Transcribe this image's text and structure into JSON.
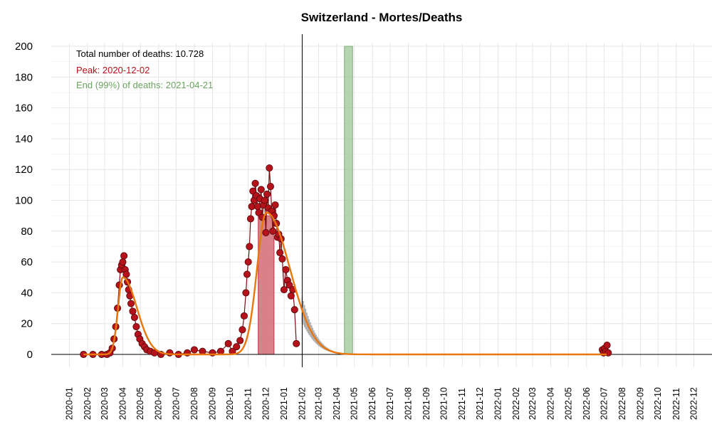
{
  "chart_data": {
    "type": "scatter",
    "title": "Switzerland - Mortes/Deaths",
    "xlabel": "",
    "ylabel": "",
    "ylim": [
      0,
      200
    ],
    "xlim": [
      "2019-12-01",
      "2023-01-01"
    ],
    "yticks": [
      0,
      20,
      40,
      60,
      80,
      100,
      120,
      140,
      160,
      180,
      200
    ],
    "xticks": [
      "2020-01",
      "2020-02",
      "2020-03",
      "2020-04",
      "2020-05",
      "2020-06",
      "2020-07",
      "2020-08",
      "2020-09",
      "2020-10",
      "2020-11",
      "2020-12",
      "2021-01",
      "2021-02",
      "2021-03",
      "2021-04",
      "2021-05",
      "2021-06",
      "2021-07",
      "2021-08",
      "2021-09",
      "2021-10",
      "2021-11",
      "2021-12",
      "2022-01",
      "2022-02",
      "2022-03",
      "2022-04",
      "2022-05",
      "2022-06",
      "2022-07",
      "2022-08",
      "2022-09",
      "2022-10",
      "2022-11",
      "2022-12"
    ],
    "grid": true,
    "annotations": {
      "total": "Total number of deaths: 10.728",
      "peak": "Peak: 2020-12-02",
      "end": "End (99%) of deaths: 2021-04-21"
    },
    "today": "2021-02-01",
    "peak_band": [
      "2020-11-18",
      "2020-12-15"
    ],
    "end_band": [
      "2021-04-14",
      "2021-04-28"
    ],
    "colors": {
      "points": "#b5121b",
      "fit": "#e8770e",
      "peak_band": "#d46a74",
      "end_band": "#9cc694",
      "forecast": "#aaaaaa",
      "peak_text": "#b5121b",
      "end_text": "#6aa35e"
    },
    "fit_waves": [
      {
        "peak": "2020-04-01",
        "amplitude": 50,
        "rise_sd": 8,
        "fall_sd": 24
      },
      {
        "peak": "2020-12-02",
        "amplitude": 92,
        "rise_sd": 16,
        "fall_sd": 40
      }
    ],
    "observed": [
      [
        "2020-01-25",
        0
      ],
      [
        "2020-02-10",
        0
      ],
      [
        "2020-02-25",
        0
      ],
      [
        "2020-03-05",
        0
      ],
      [
        "2020-03-10",
        1
      ],
      [
        "2020-03-14",
        4
      ],
      [
        "2020-03-17",
        10
      ],
      [
        "2020-03-20",
        18
      ],
      [
        "2020-03-23",
        30
      ],
      [
        "2020-03-26",
        45
      ],
      [
        "2020-03-28",
        55
      ],
      [
        "2020-03-30",
        58
      ],
      [
        "2020-04-01",
        60
      ],
      [
        "2020-04-03",
        64
      ],
      [
        "2020-04-05",
        55
      ],
      [
        "2020-04-07",
        52
      ],
      [
        "2020-04-09",
        47
      ],
      [
        "2020-04-11",
        42
      ],
      [
        "2020-04-13",
        38
      ],
      [
        "2020-04-15",
        33
      ],
      [
        "2020-04-18",
        28
      ],
      [
        "2020-04-21",
        24
      ],
      [
        "2020-04-24",
        18
      ],
      [
        "2020-04-27",
        13
      ],
      [
        "2020-04-30",
        10
      ],
      [
        "2020-05-04",
        7
      ],
      [
        "2020-05-08",
        5
      ],
      [
        "2020-05-12",
        3
      ],
      [
        "2020-05-18",
        2
      ],
      [
        "2020-05-25",
        1
      ],
      [
        "2020-06-05",
        0
      ],
      [
        "2020-06-20",
        1
      ],
      [
        "2020-07-05",
        0
      ],
      [
        "2020-07-20",
        1
      ],
      [
        "2020-08-01",
        3
      ],
      [
        "2020-08-15",
        2
      ],
      [
        "2020-09-01",
        1
      ],
      [
        "2020-09-15",
        2
      ],
      [
        "2020-09-28",
        7
      ],
      [
        "2020-10-05",
        2
      ],
      [
        "2020-10-12",
        5
      ],
      [
        "2020-10-18",
        9
      ],
      [
        "2020-10-22",
        16
      ],
      [
        "2020-10-25",
        25
      ],
      [
        "2020-10-28",
        40
      ],
      [
        "2020-10-30",
        52
      ],
      [
        "2020-11-01",
        60
      ],
      [
        "2020-11-03",
        70
      ],
      [
        "2020-11-05",
        88
      ],
      [
        "2020-11-07",
        96
      ],
      [
        "2020-11-09",
        106
      ],
      [
        "2020-11-11",
        100
      ],
      [
        "2020-11-13",
        111
      ],
      [
        "2020-11-15",
        103
      ],
      [
        "2020-11-17",
        96
      ],
      [
        "2020-11-19",
        92
      ],
      [
        "2020-11-21",
        101
      ],
      [
        "2020-11-23",
        107
      ],
      [
        "2020-11-25",
        89
      ],
      [
        "2020-11-27",
        97
      ],
      [
        "2020-11-29",
        100
      ],
      [
        "2020-12-01",
        79
      ],
      [
        "2020-12-03",
        104
      ],
      [
        "2020-12-05",
        95
      ],
      [
        "2020-12-07",
        121
      ],
      [
        "2020-12-09",
        109
      ],
      [
        "2020-12-11",
        93
      ],
      [
        "2020-12-13",
        80
      ],
      [
        "2020-12-15",
        90
      ],
      [
        "2020-12-17",
        97
      ],
      [
        "2020-12-19",
        85
      ],
      [
        "2020-12-21",
        76
      ],
      [
        "2020-12-23",
        78
      ],
      [
        "2020-12-25",
        66
      ],
      [
        "2020-12-27",
        75
      ],
      [
        "2020-12-29",
        62
      ],
      [
        "2021-01-01",
        42
      ],
      [
        "2021-01-04",
        55
      ],
      [
        "2021-01-07",
        48
      ],
      [
        "2021-01-10",
        45
      ],
      [
        "2021-01-13",
        38
      ],
      [
        "2021-01-16",
        42
      ],
      [
        "2021-01-19",
        29
      ],
      [
        "2021-01-22",
        7
      ],
      [
        "2022-06-28",
        3
      ],
      [
        "2022-06-30",
        1
      ],
      [
        "2022-07-02",
        4
      ],
      [
        "2022-07-04",
        2
      ],
      [
        "2022-07-06",
        6
      ],
      [
        "2022-07-08",
        1
      ]
    ]
  }
}
